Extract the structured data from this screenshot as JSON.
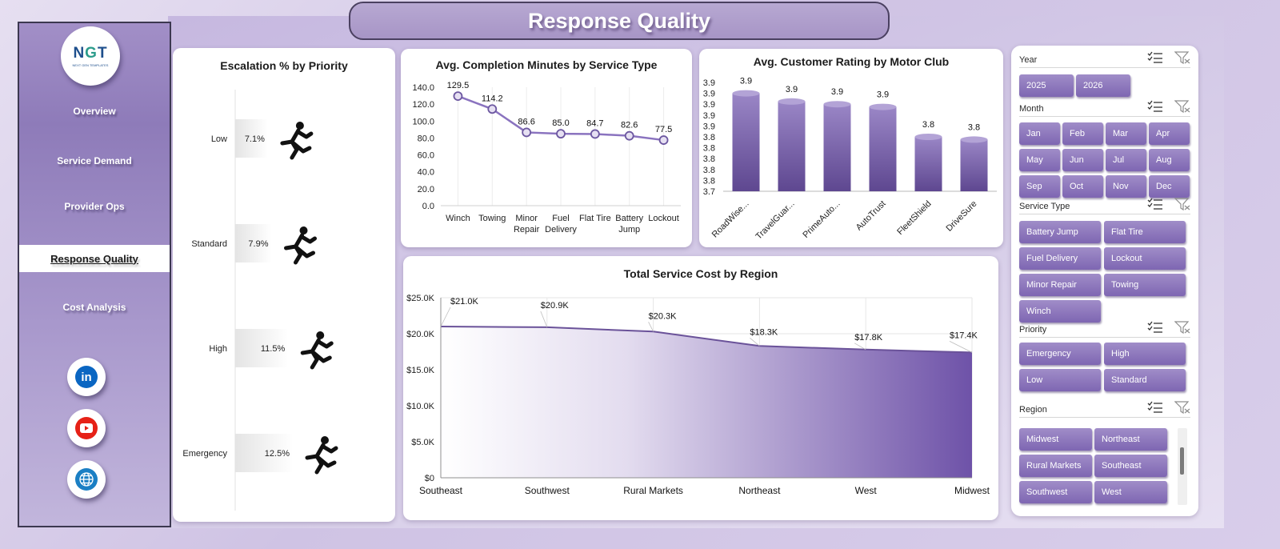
{
  "header": {
    "title": "Response Quality"
  },
  "logo": {
    "brand_n": "N",
    "brand_g": "G",
    "brand_t": "T",
    "tagline": "NEXT GEN TEMPLATES"
  },
  "sidebar": {
    "items": [
      {
        "label": "Overview",
        "active": false
      },
      {
        "label": "Service Demand",
        "active": false
      },
      {
        "label": "Provider Ops",
        "active": false
      },
      {
        "label": "Response Quality",
        "active": true
      },
      {
        "label": "Cost Analysis",
        "active": false
      }
    ],
    "social": [
      {
        "icon": "linkedin-icon",
        "text": "in"
      },
      {
        "icon": "youtube-icon"
      },
      {
        "icon": "globe-icon"
      }
    ]
  },
  "charts": {
    "escalation": {
      "title": "Escalation % by Priority",
      "chart_data": {
        "type": "bar",
        "categories": [
          "Low",
          "Standard",
          "High",
          "Emergency"
        ],
        "values": [
          7.1,
          7.9,
          11.5,
          12.5
        ],
        "labels": [
          "7.1%",
          "7.9%",
          "11.5%",
          "12.5%"
        ],
        "unit": "%"
      }
    },
    "completion": {
      "title": "Avg. Completion Minutes by Service Type",
      "chart_data": {
        "type": "line",
        "categories": [
          "Winch",
          "Towing",
          "Minor Repair",
          "Fuel Delivery",
          "Flat Tire",
          "Battery Jump",
          "Lockout"
        ],
        "values": [
          129.5,
          114.2,
          86.6,
          85.0,
          84.7,
          82.6,
          77.5
        ],
        "labels": [
          "129.5",
          "114.2",
          "86.6",
          "85.0",
          "84.7",
          "82.6",
          "77.5"
        ],
        "yticks": [
          "0.0",
          "20.0",
          "40.0",
          "60.0",
          "80.0",
          "100.0",
          "120.0",
          "140.0"
        ],
        "ylim": [
          0,
          140
        ]
      }
    },
    "rating": {
      "title": "Avg. Customer Rating by Motor Club",
      "chart_data": {
        "type": "bar",
        "categories": [
          "RoadWise...",
          "TravelGuar...",
          "PrimeAuto...",
          "AutoTrust",
          "FleetShield",
          "DriveSure"
        ],
        "values": [
          3.88,
          3.865,
          3.86,
          3.855,
          3.8,
          3.795
        ],
        "labels": [
          "3.9",
          "3.9",
          "3.9",
          "3.9",
          "3.8",
          "3.8"
        ],
        "yticks": [
          "3.7",
          "3.8",
          "3.8",
          "3.8",
          "3.8",
          "3.8",
          "3.9",
          "3.9",
          "3.9",
          "3.9",
          "3.9"
        ],
        "ylim": [
          3.7,
          3.9
        ]
      }
    },
    "cost": {
      "title": "Total Service Cost by Region",
      "chart_data": {
        "type": "area",
        "categories": [
          "Southeast",
          "Southwest",
          "Rural Markets",
          "Northeast",
          "West",
          "Midwest"
        ],
        "values": [
          21.0,
          20.9,
          20.3,
          18.3,
          17.8,
          17.4
        ],
        "labels": [
          "$21.0K",
          "$20.9K",
          "$20.3K",
          "$18.3K",
          "$17.8K",
          "$17.4K"
        ],
        "yticks": [
          "$0",
          "$5.0K",
          "$10.0K",
          "$15.0K",
          "$20.0K",
          "$25.0K"
        ],
        "ylim": [
          0,
          25
        ],
        "unit": "$K"
      }
    }
  },
  "slicers": {
    "year": {
      "label": "Year",
      "options": [
        "2025",
        "2026"
      ]
    },
    "month": {
      "label": "Month",
      "options": [
        "Jan",
        "Feb",
        "Mar",
        "Apr",
        "May",
        "Jun",
        "Jul",
        "Aug",
        "Sep",
        "Oct",
        "Nov",
        "Dec"
      ]
    },
    "service_type": {
      "label": "Service Type",
      "options": [
        "Battery Jump",
        "Flat Tire",
        "Fuel Delivery",
        "Lockout",
        "Minor Repair",
        "Towing",
        "Winch"
      ]
    },
    "priority": {
      "label": "Priority",
      "options": [
        "Emergency",
        "High",
        "Low",
        "Standard"
      ]
    },
    "region": {
      "label": "Region",
      "options": [
        "Midwest",
        "Northeast",
        "Rural Markets",
        "Southeast",
        "Southwest",
        "West"
      ]
    }
  },
  "colors": {
    "accent": "#7e66b2",
    "line": "#8a73bf",
    "area": "#6e52a8"
  }
}
